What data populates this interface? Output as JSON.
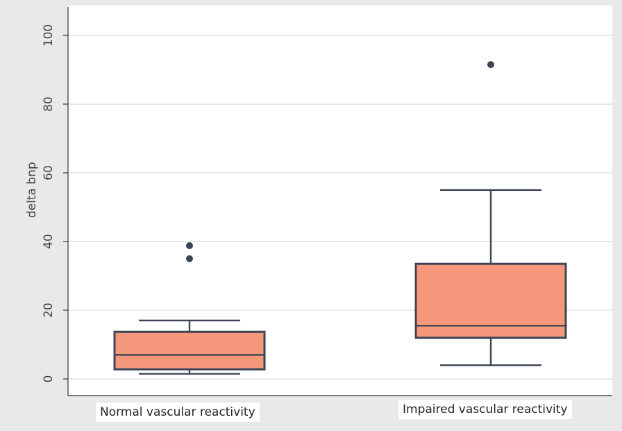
{
  "colors": {
    "outer_bg": "#e9e9e9",
    "plot_bg": "#ffffff",
    "grid": "#dcdcdc",
    "box_fill": "#f4977a",
    "box_stroke": "#3b4556",
    "axis_text": "#444444"
  },
  "chart_data": {
    "type": "box",
    "title": "",
    "xlabel": "",
    "ylabel": "delta bnp",
    "ylim": [
      -5,
      103
    ],
    "yticks": [
      0,
      20,
      40,
      60,
      80,
      100
    ],
    "grid": true,
    "categories": [
      "Normal vascular reactivity",
      "Impaired vascular reactivity"
    ],
    "boxes": [
      {
        "category": "Normal vascular reactivity",
        "whisker_low": 1.5,
        "q1": 2.8,
        "median": 7,
        "q3": 13.7,
        "whisker_high": 17,
        "outliers": [
          35,
          38.8
        ]
      },
      {
        "category": "Impaired vascular reactivity",
        "whisker_low": 4,
        "q1": 12,
        "median": 15.5,
        "q3": 33.5,
        "whisker_high": 55,
        "outliers": [
          91.5
        ]
      }
    ]
  }
}
